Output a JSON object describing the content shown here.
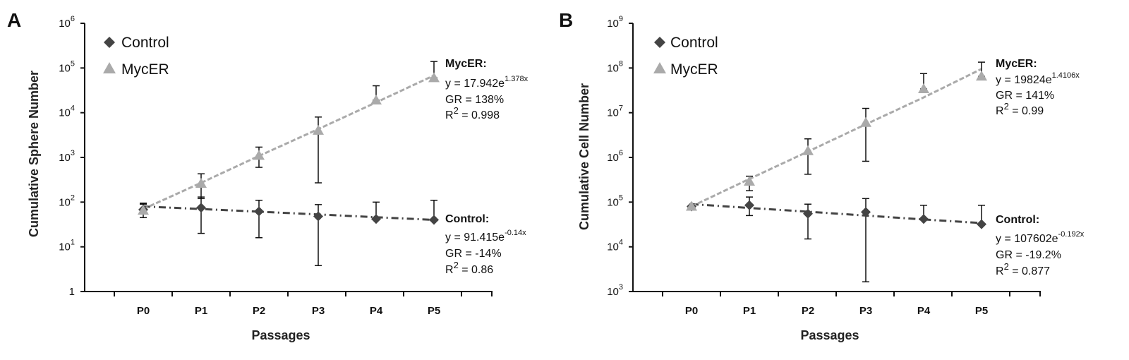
{
  "chart_data": [
    {
      "panel": "A",
      "type": "line",
      "ylabel": "Cumulative Sphere Number",
      "xlabel": "Passages",
      "categories": [
        "P0",
        "P1",
        "P2",
        "P3",
        "P4",
        "P5"
      ],
      "yscale": "log",
      "ylim": [
        1,
        1000000
      ],
      "yticks": [
        {
          "value": 1,
          "base": "1",
          "exp": ""
        },
        {
          "value": 10,
          "base": "10",
          "exp": "1"
        },
        {
          "value": 100,
          "base": "10",
          "exp": "2"
        },
        {
          "value": 1000,
          "base": "10",
          "exp": "3"
        },
        {
          "value": 10000,
          "base": "10",
          "exp": "4"
        },
        {
          "value": 100000,
          "base": "10",
          "exp": "5"
        },
        {
          "value": 1000000,
          "base": "10",
          "exp": "6"
        }
      ],
      "legend": [
        "Control",
        "MycER"
      ],
      "series": [
        {
          "name": "Control",
          "marker": "diamond",
          "color": "#444444",
          "values": [
            68,
            75,
            62,
            48,
            42,
            40
          ],
          "err_high": [
            95,
            130,
            110,
            88,
            100,
            110
          ],
          "err_low": [
            45,
            20,
            16,
            3.8,
            42,
            40
          ],
          "trend": [
            80,
            70,
            61,
            53,
            46,
            40
          ]
        },
        {
          "name": "MycER",
          "marker": "triangle",
          "color": "#aaaaaa",
          "values": [
            65,
            260,
            1100,
            4000,
            19000,
            60000
          ],
          "err_high": [
            90,
            430,
            1700,
            8000,
            40000,
            140000
          ],
          "err_low": [
            65,
            120,
            600,
            270,
            19000,
            60000
          ],
          "trend": [
            70,
            270,
            1080,
            4300,
            17000,
            68000
          ]
        }
      ],
      "annotations": [
        {
          "title": "MycER:",
          "eq_base": "y = 17.942e",
          "eq_exp": "1.378x",
          "gr": "GR = 138%",
          "r_base": "R",
          "r_exp": "2",
          "r_rest": " = 0.998"
        },
        {
          "title": "Control:",
          "eq_base": "y = 91.415e",
          "eq_exp": "-0.14x",
          "gr": "GR = -14%",
          "r_base": "R",
          "r_exp": "2",
          "r_rest": " = 0.86"
        }
      ]
    },
    {
      "panel": "B",
      "type": "line",
      "ylabel": "Cumulative Cell Number",
      "xlabel": "Passages",
      "categories": [
        "P0",
        "P1",
        "P2",
        "P3",
        "P4",
        "P5"
      ],
      "yscale": "log",
      "ylim": [
        1000,
        1000000000
      ],
      "yticks": [
        {
          "value": 1000,
          "base": "10",
          "exp": "3"
        },
        {
          "value": 10000,
          "base": "10",
          "exp": "4"
        },
        {
          "value": 100000,
          "base": "10",
          "exp": "5"
        },
        {
          "value": 1000000,
          "base": "10",
          "exp": "6"
        },
        {
          "value": 10000000,
          "base": "10",
          "exp": "7"
        },
        {
          "value": 100000000,
          "base": "10",
          "exp": "8"
        },
        {
          "value": 1000000000,
          "base": "10",
          "exp": "9"
        }
      ],
      "legend": [
        "Control",
        "MycER"
      ],
      "series": [
        {
          "name": "Control",
          "marker": "diamond",
          "color": "#444444",
          "values": [
            80000,
            85000,
            55000,
            60000,
            42000,
            32000
          ],
          "err_high": [
            80000,
            130000,
            90000,
            120000,
            85000,
            85000
          ],
          "err_low": [
            80000,
            50000,
            15000,
            1650,
            42000,
            32000
          ],
          "trend": [
            90000,
            74000,
            61000,
            50000,
            41000,
            34000
          ]
        },
        {
          "name": "MycER",
          "marker": "triangle",
          "color": "#aaaaaa",
          "values": [
            80000,
            290000,
            1400000,
            6000000,
            34000000,
            65000000
          ],
          "err_high": [
            80000,
            380000,
            2600000,
            12500000,
            75000000,
            135000000
          ],
          "err_low": [
            80000,
            180000,
            420000,
            820000,
            34000000,
            65000000
          ],
          "trend": [
            80000,
            330000,
            1350000,
            5500000,
            22000000,
            95000000
          ]
        }
      ],
      "annotations": [
        {
          "title": "MycER:",
          "eq_base": "y = 19824e",
          "eq_exp": "1.4106x",
          "gr": "GR = 141%",
          "r_base": "R",
          "r_exp": "2",
          "r_rest": " = 0.99"
        },
        {
          "title": "Control:",
          "eq_base": "y = 107602e",
          "eq_exp": "-0.192x",
          "gr": "GR = -19.2%",
          "r_base": "R",
          "r_exp": "2",
          "r_rest": " = 0.877"
        }
      ]
    }
  ]
}
